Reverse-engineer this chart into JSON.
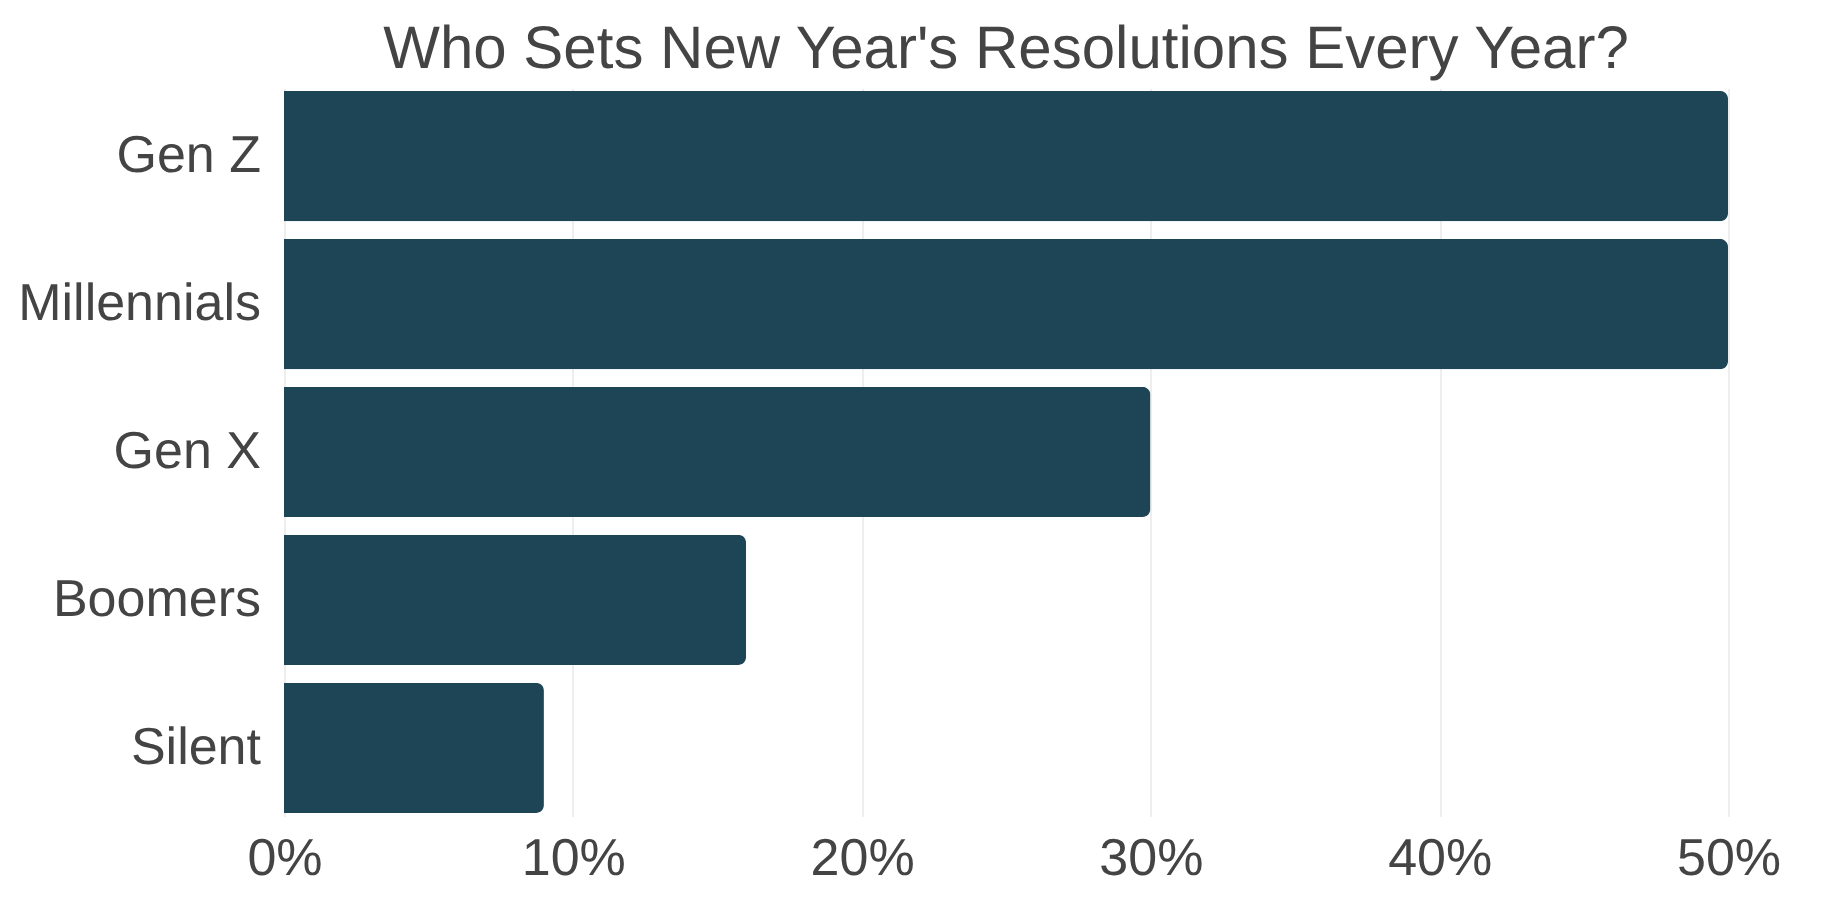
{
  "chart_data": {
    "type": "bar",
    "orientation": "horizontal",
    "title": "Who Sets New Year's Resolutions Every Year?",
    "categories": [
      "Gen Z",
      "Millennials",
      "Gen X",
      "Boomers",
      "Silent"
    ],
    "values": [
      50,
      50,
      30,
      16,
      9
    ],
    "color": "#1e4555",
    "xlim": [
      0,
      50
    ],
    "xticks": [
      {
        "value": 0,
        "label": "0%"
      },
      {
        "value": 10,
        "label": "10%"
      },
      {
        "value": 20,
        "label": "20%"
      },
      {
        "value": 30,
        "label": "30%"
      },
      {
        "value": 40,
        "label": "40%"
      },
      {
        "value": 50,
        "label": "50%"
      }
    ],
    "grid": "x"
  }
}
